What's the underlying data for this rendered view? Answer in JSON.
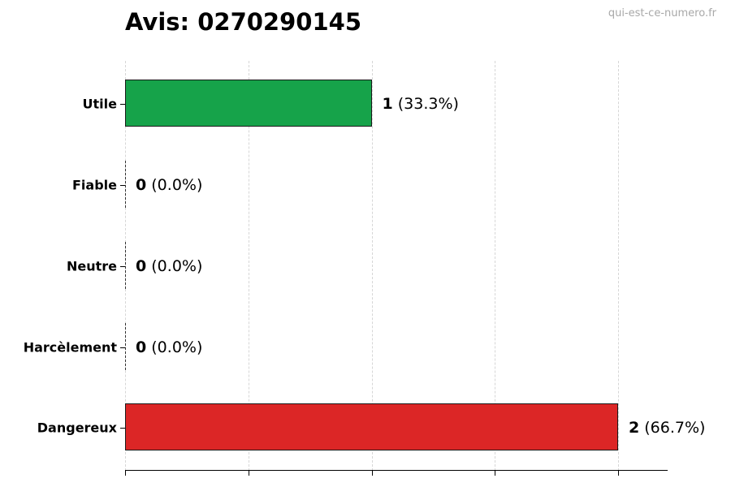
{
  "header": {
    "title": "Avis: 0270290145",
    "watermark": "qui-est-ce-numero.fr"
  },
  "chart_data": {
    "type": "bar",
    "orientation": "horizontal",
    "title": "Avis: 0270290145",
    "xlabel": "",
    "ylabel": "",
    "xlim": [
      0,
      2.2
    ],
    "grid": "x dashed",
    "legend": "none",
    "categories": [
      "Utile",
      "Fiable",
      "Neutre",
      "Harcèlement",
      "Dangereux"
    ],
    "values": [
      1,
      0,
      0,
      0,
      2
    ],
    "percentages": [
      "33.3%",
      "0.0%",
      "0.0%",
      "0.0%",
      "66.7%"
    ],
    "colors": [
      "#16a34a",
      "#888888",
      "#888888",
      "#888888",
      "#dc2626"
    ],
    "bar_labels": [
      {
        "count": "1",
        "pct": "(33.3%)"
      },
      {
        "count": "0",
        "pct": "(0.0%)"
      },
      {
        "count": "0",
        "pct": "(0.0%)"
      },
      {
        "count": "0",
        "pct": "(0.0%)"
      },
      {
        "count": "2",
        "pct": "(66.7%)"
      }
    ]
  }
}
